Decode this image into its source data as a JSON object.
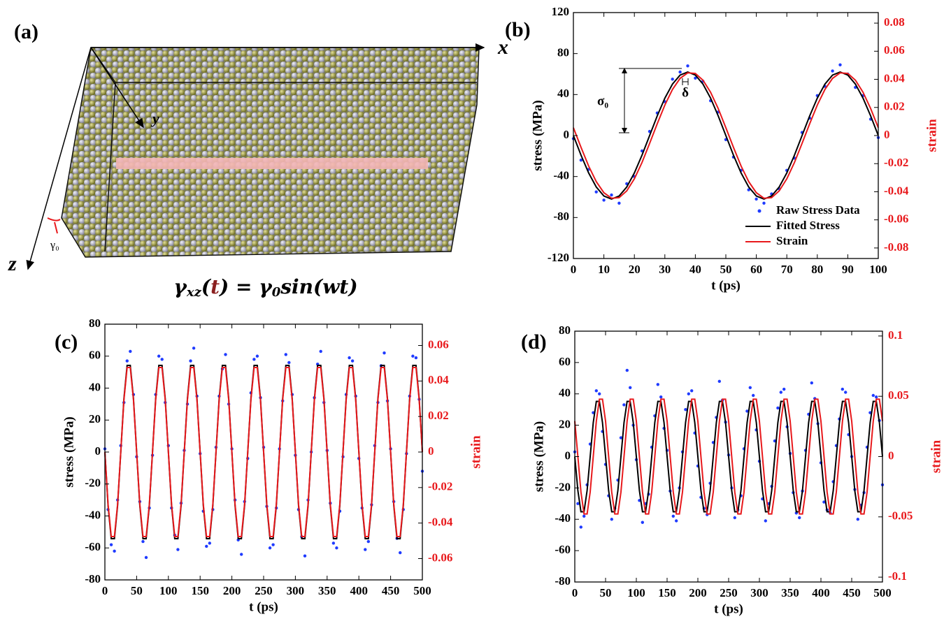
{
  "panel_a": {
    "label": "(a)",
    "x_axis": "x",
    "y_axis": "y",
    "z_axis": "z",
    "gamma": "γ₀",
    "equation": [
      "γ",
      "xz",
      "(",
      "t",
      ") = γ",
      "0",
      "sin(wt)"
    ]
  },
  "chart_data": [
    {
      "type": "line",
      "panel_label": "(b)",
      "x_label": "t (ps)",
      "y_label": "stress (MPa)",
      "y2_label": "strain",
      "annotations": [
        "σ₀",
        "δ"
      ],
      "legend": "lower right",
      "xlim": [
        0,
        100
      ],
      "xticks": [
        0,
        10,
        20,
        30,
        40,
        50,
        60,
        70,
        80,
        90,
        100
      ],
      "ylim": [
        -120,
        120
      ],
      "yticks": [
        -120,
        -80,
        -40,
        0,
        40,
        80,
        120
      ],
      "y2lim": [
        -0.0875,
        0.0875
      ],
      "y2ticks": [
        -0.08,
        -0.06,
        -0.04,
        -0.02,
        0,
        0.02,
        0.04,
        0.06,
        0.08
      ],
      "x": [
        0,
        2.5,
        5,
        7.5,
        10,
        12.5,
        15,
        17.5,
        20,
        22.5,
        25,
        27.5,
        30,
        32.5,
        35,
        37.5,
        40,
        42.5,
        45,
        47.5,
        50,
        52.5,
        55,
        57.5,
        60,
        62.5,
        65,
        67.5,
        70,
        72.5,
        75,
        77.5,
        80,
        82.5,
        85,
        87.5,
        90,
        92.5,
        95,
        97.5,
        100
      ],
      "series": [
        {
          "name": "Raw Stress Data",
          "color": "#1f3bff",
          "mode": "markers",
          "values": [
            -3,
            -24,
            -33,
            -55,
            -63,
            -58,
            -66,
            -47,
            -40,
            -15,
            4,
            22,
            33,
            55,
            62,
            68,
            56,
            53,
            34,
            23,
            -4,
            -21,
            -34,
            -53,
            -62,
            -66,
            -57,
            -52,
            -34,
            -22,
            3,
            17,
            39,
            48,
            63,
            69,
            60,
            47,
            39,
            16,
            -2
          ]
        },
        {
          "name": "Fitted Stress",
          "color": "#000000",
          "mode": "line",
          "values": [
            0,
            -19.2,
            -36.5,
            -50.2,
            -59,
            -62,
            -59,
            -50.2,
            -36.5,
            -19.2,
            0,
            19.2,
            36.5,
            50.2,
            59,
            62,
            59,
            50.2,
            36.5,
            19.2,
            0,
            -19.2,
            -36.5,
            -50.2,
            -59,
            -62,
            -59,
            -50.2,
            -36.5,
            -19.2,
            0,
            19.2,
            36.5,
            50.2,
            59,
            62,
            59,
            50.2,
            36.5,
            19.2,
            0
          ]
        },
        {
          "name": "Strain",
          "color": "#e8191c",
          "mode": "line",
          "axis": "y2",
          "values": [
            0.0056,
            -0.0084,
            -0.0217,
            -0.0328,
            -0.0407,
            -0.0446,
            -0.0442,
            -0.0394,
            -0.0308,
            -0.0192,
            -0.0056,
            0.0084,
            0.0217,
            0.0328,
            0.0407,
            0.0446,
            0.0442,
            0.0394,
            0.0308,
            0.0192,
            0.0056,
            -0.0084,
            -0.0217,
            -0.0328,
            -0.0407,
            -0.0446,
            -0.0442,
            -0.0394,
            -0.0308,
            -0.0192,
            -0.0056,
            0.0084,
            0.0217,
            0.0328,
            0.0407,
            0.0446,
            0.0442,
            0.0394,
            0.0308,
            0.0192,
            0.0056
          ]
        }
      ]
    },
    {
      "type": "line",
      "panel_label": "(c)",
      "x_label": "t (ps)",
      "y_label": "stress (MPa)",
      "y2_label": "strain",
      "xlim": [
        0,
        500
      ],
      "xticks": [
        0,
        50,
        100,
        150,
        200,
        250,
        300,
        350,
        400,
        450,
        500
      ],
      "ylim": [
        -80,
        80
      ],
      "yticks": [
        -80,
        -60,
        -40,
        -20,
        0,
        20,
        40,
        60,
        80
      ],
      "y2lim": [
        -0.072,
        0.072
      ],
      "y2ticks": [
        -0.06,
        -0.04,
        -0.02,
        0,
        0.02,
        0.04,
        0.06
      ],
      "x": [
        0,
        5,
        10,
        15,
        20,
        25,
        30,
        35,
        40,
        45,
        50,
        55,
        60,
        65,
        70,
        75,
        80,
        85,
        90,
        95,
        100,
        105,
        110,
        115,
        120,
        125,
        130,
        135,
        140,
        145,
        150,
        155,
        160,
        165,
        170,
        175,
        180,
        185,
        190,
        195,
        200,
        205,
        210,
        215,
        220,
        225,
        230,
        235,
        240,
        245,
        250,
        255,
        260,
        265,
        270,
        275,
        280,
        285,
        290,
        295,
        300,
        305,
        310,
        315,
        320,
        325,
        330,
        335,
        340,
        345,
        350,
        355,
        360,
        365,
        370,
        375,
        380,
        385,
        390,
        395,
        400,
        405,
        410,
        415,
        420,
        425,
        430,
        435,
        440,
        445,
        450,
        455,
        460,
        465,
        470,
        475,
        480,
        485,
        490,
        495,
        500
      ],
      "series": [
        {
          "color": "#1f3bff",
          "mode": "markers",
          "values": [
            2,
            -36,
            -58,
            -62,
            -30,
            4,
            31,
            57,
            63,
            36,
            -3,
            -31,
            -56,
            -66,
            -35,
            -2,
            36,
            60,
            58,
            31,
            4,
            -35,
            -52,
            -61,
            -32,
            1,
            30,
            57,
            65,
            35,
            -1,
            -37,
            -59,
            -57,
            -36,
            3,
            35,
            52,
            61,
            30,
            2,
            -30,
            -55,
            -64,
            -31,
            -4,
            37,
            58,
            60,
            34,
            3,
            -34,
            -60,
            -58,
            -35,
            2,
            32,
            61,
            56,
            36,
            -2,
            -36,
            -53,
            -65,
            -30,
            0,
            34,
            55,
            63,
            31,
            1,
            -32,
            -57,
            -60,
            -37,
            -3,
            36,
            59,
            57,
            35,
            -4,
            -35,
            -61,
            -56,
            -33,
            4,
            31,
            54,
            62,
            32,
            2,
            -31,
            -54,
            -63,
            -36,
            -1,
            35,
            60,
            59,
            33,
            -12
          ]
        },
        {
          "color": "#000000",
          "mode": "line",
          "values": [
            0,
            -33.5,
            -54.2,
            -54.2,
            -33.5,
            0,
            33.5,
            54.2,
            54.2,
            33.5,
            0,
            -33.5,
            -54.2,
            -54.2,
            -33.5,
            0,
            33.5,
            54.2,
            54.2,
            33.5,
            0,
            -33.5,
            -54.2,
            -54.2,
            -33.5,
            0,
            33.5,
            54.2,
            54.2,
            33.5,
            0,
            -33.5,
            -54.2,
            -54.2,
            -33.5,
            0,
            33.5,
            54.2,
            54.2,
            33.5,
            0,
            -33.5,
            -54.2,
            -54.2,
            -33.5,
            0,
            33.5,
            54.2,
            54.2,
            33.5,
            0,
            -33.5,
            -54.2,
            -54.2,
            -33.5,
            0,
            33.5,
            54.2,
            54.2,
            33.5,
            0,
            -33.5,
            -54.2,
            -54.2,
            -33.5,
            0,
            33.5,
            54.2,
            54.2,
            33.5,
            0,
            -33.5,
            -54.2,
            -54.2,
            -33.5,
            0,
            33.5,
            54.2,
            54.2,
            33.5,
            0,
            -33.5,
            -54.2,
            -54.2,
            -33.5,
            0,
            33.5,
            54.2,
            54.2,
            33.5,
            0,
            -33.5,
            -54.2,
            -54.2,
            -33.5,
            0,
            33.5,
            54.2,
            54.2,
            33.5,
            0
          ]
        },
        {
          "color": "#e8191c",
          "mode": "line",
          "axis": "y2",
          "values": [
            0,
            -0.0294,
            -0.0476,
            -0.0476,
            -0.0294,
            0,
            0.0294,
            0.0476,
            0.0476,
            0.0294,
            0,
            -0.0294,
            -0.0476,
            -0.0476,
            -0.0294,
            0,
            0.0294,
            0.0476,
            0.0476,
            0.0294,
            0,
            -0.0294,
            -0.0476,
            -0.0476,
            -0.0294,
            0,
            0.0294,
            0.0476,
            0.0476,
            0.0294,
            0,
            -0.0294,
            -0.0476,
            -0.0476,
            -0.0294,
            0,
            0.0294,
            0.0476,
            0.0476,
            0.0294,
            0,
            -0.0294,
            -0.0476,
            -0.0476,
            -0.0294,
            0,
            0.0294,
            0.0476,
            0.0476,
            0.0294,
            0,
            -0.0294,
            -0.0476,
            -0.0476,
            -0.0294,
            0,
            0.0294,
            0.0476,
            0.0476,
            0.0294,
            0,
            -0.0294,
            -0.0476,
            -0.0476,
            -0.0294,
            0,
            0.0294,
            0.0476,
            0.0476,
            0.0294,
            0,
            -0.0294,
            -0.0476,
            -0.0476,
            -0.0294,
            0,
            0.0294,
            0.0476,
            0.0476,
            0.0294,
            0,
            -0.0294,
            -0.0476,
            -0.0476,
            -0.0294,
            0,
            0.0294,
            0.0476,
            0.0476,
            0.0294,
            0,
            -0.0294,
            -0.0476,
            -0.0476,
            -0.0294,
            0,
            0.0294,
            0.0476,
            0.0476,
            0.0294,
            0
          ]
        }
      ]
    },
    {
      "type": "line",
      "panel_label": "(d)",
      "x_label": "t (ps)",
      "y_label": "stress (MPa)",
      "y2_label": "strain",
      "xlim": [
        0,
        500
      ],
      "xticks": [
        0,
        50,
        100,
        150,
        200,
        250,
        300,
        350,
        400,
        450,
        500
      ],
      "ylim": [
        -80,
        80
      ],
      "yticks": [
        -80,
        -60,
        -40,
        -20,
        0,
        20,
        40,
        60,
        80
      ],
      "y2lim": [
        -0.104,
        0.104
      ],
      "y2ticks": [
        -0.1,
        -0.05,
        0,
        0.05,
        0.1
      ],
      "x": [
        0,
        5,
        10,
        15,
        20,
        25,
        30,
        35,
        40,
        45,
        50,
        55,
        60,
        65,
        70,
        75,
        80,
        85,
        90,
        95,
        100,
        105,
        110,
        115,
        120,
        125,
        130,
        135,
        140,
        145,
        150,
        155,
        160,
        165,
        170,
        175,
        180,
        185,
        190,
        195,
        200,
        205,
        210,
        215,
        220,
        225,
        230,
        235,
        240,
        245,
        250,
        255,
        260,
        265,
        270,
        275,
        280,
        285,
        290,
        295,
        300,
        305,
        310,
        315,
        320,
        325,
        330,
        335,
        340,
        345,
        350,
        355,
        360,
        365,
        370,
        375,
        380,
        385,
        390,
        395,
        400,
        405,
        410,
        415,
        420,
        425,
        430,
        435,
        440,
        445,
        450,
        455,
        460,
        465,
        470,
        475,
        480,
        485,
        490,
        495,
        500
      ],
      "series": [
        {
          "color": "#1f3bff",
          "mode": "markers",
          "values": [
            3,
            -30,
            -45,
            -38,
            -18,
            8,
            28,
            42,
            40,
            16,
            -5,
            -25,
            -40,
            -33,
            -15,
            12,
            33,
            55,
            44,
            20,
            -2,
            -28,
            -42,
            -30,
            -24,
            6,
            26,
            46,
            38,
            18,
            4,
            -22,
            -38,
            -41,
            -20,
            3,
            30,
            40,
            42,
            15,
            -6,
            -26,
            -33,
            -37,
            -17,
            9,
            25,
            48,
            36,
            22,
            1,
            -20,
            -39,
            -34,
            -25,
            5,
            29,
            44,
            39,
            17,
            -3,
            -27,
            -41,
            -30,
            -19,
            10,
            31,
            41,
            43,
            19,
            2,
            -23,
            -36,
            -39,
            -22,
            4,
            27,
            47,
            37,
            21,
            -4,
            -29,
            -34,
            -36,
            -16,
            7,
            24,
            43,
            41,
            14,
            0,
            -21,
            -40,
            -31,
            -23,
            6,
            28,
            39,
            38,
            23,
            -18
          ]
        },
        {
          "color": "#000000",
          "mode": "line",
          "values": [
            0,
            -21.7,
            -35.2,
            -35.2,
            -21.7,
            0,
            21.7,
            35.2,
            35.2,
            21.7,
            0,
            -21.7,
            -35.2,
            -35.2,
            -21.7,
            0,
            21.7,
            35.2,
            35.2,
            21.7,
            0,
            -21.7,
            -35.2,
            -35.2,
            -21.7,
            0,
            21.7,
            35.2,
            35.2,
            21.7,
            0,
            -21.7,
            -35.2,
            -35.2,
            -21.7,
            0,
            21.7,
            35.2,
            35.2,
            21.7,
            0,
            -21.7,
            -35.2,
            -35.2,
            -21.7,
            0,
            21.7,
            35.2,
            35.2,
            21.7,
            0,
            -21.7,
            -35.2,
            -35.2,
            -21.7,
            0,
            21.7,
            35.2,
            35.2,
            21.7,
            0,
            -21.7,
            -35.2,
            -35.2,
            -21.7,
            0,
            21.7,
            35.2,
            35.2,
            21.7,
            0,
            -21.7,
            -35.2,
            -35.2,
            -21.7,
            0,
            21.7,
            35.2,
            35.2,
            21.7,
            0,
            -21.7,
            -35.2,
            -35.2,
            -21.7,
            0,
            21.7,
            35.2,
            35.2,
            21.7,
            0,
            -21.7,
            -35.2,
            -35.2,
            -21.7,
            0,
            21.7,
            35.2,
            35.2,
            21.7,
            0
          ]
        },
        {
          "color": "#e8191c",
          "mode": "line",
          "axis": "y2",
          "values": [
            0.0294,
            0,
            -0.0294,
            -0.0476,
            -0.0476,
            -0.0294,
            0,
            0.0294,
            0.0476,
            0.0476,
            0.0294,
            0,
            -0.0294,
            -0.0476,
            -0.0476,
            -0.0294,
            0,
            0.0294,
            0.0476,
            0.0476,
            0.0294,
            0,
            -0.0294,
            -0.0476,
            -0.0476,
            -0.0294,
            0,
            0.0294,
            0.0476,
            0.0476,
            0.0294,
            0,
            -0.0294,
            -0.0476,
            -0.0476,
            -0.0294,
            0,
            0.0294,
            0.0476,
            0.0476,
            0.0294,
            0,
            -0.0294,
            -0.0476,
            -0.0476,
            -0.0294,
            0,
            0.0294,
            0.0476,
            0.0476,
            0.0294,
            0,
            -0.0294,
            -0.0476,
            -0.0476,
            -0.0294,
            0,
            0.0294,
            0.0476,
            0.0476,
            0.0294,
            0,
            -0.0294,
            -0.0476,
            -0.0476,
            -0.0294,
            0,
            0.0294,
            0.0476,
            0.0476,
            0.0294,
            0,
            -0.0294,
            -0.0476,
            -0.0476,
            -0.0294,
            0,
            0.0294,
            0.0476,
            0.0476,
            0.0294,
            0,
            -0.0294,
            -0.0476,
            -0.0476,
            -0.0294,
            0,
            0.0294,
            0.0476,
            0.0476,
            0.0294,
            0,
            -0.0294,
            -0.0476,
            -0.0476,
            -0.0294,
            0,
            0.0294,
            0.0476,
            0.0476,
            0.0294
          ]
        }
      ]
    }
  ]
}
